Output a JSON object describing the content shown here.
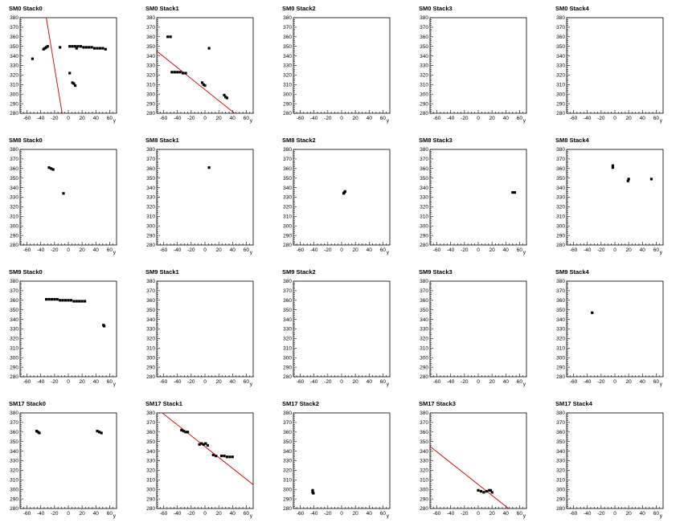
{
  "chart_data": [
    {
      "type": "scatter",
      "title": "SM0 Stack0",
      "xlabel": "y",
      "xlim": [
        -70,
        70
      ],
      "ylim": [
        280,
        380
      ],
      "x_ticks": [
        -60,
        -40,
        -20,
        0,
        20,
        40,
        60
      ],
      "y_ticks": [
        280,
        290,
        300,
        310,
        320,
        330,
        340,
        350,
        360,
        370,
        380
      ],
      "points": [
        [
          -52,
          337
        ],
        [
          -36,
          347
        ],
        [
          -34,
          348
        ],
        [
          -32,
          349
        ],
        [
          -30,
          350
        ],
        [
          -12,
          349
        ],
        [
          2,
          350
        ],
        [
          6,
          350
        ],
        [
          10,
          350
        ],
        [
          14,
          350
        ],
        [
          18,
          350
        ],
        [
          22,
          349
        ],
        [
          26,
          349
        ],
        [
          30,
          349
        ],
        [
          34,
          349
        ],
        [
          38,
          348
        ],
        [
          42,
          348
        ],
        [
          46,
          348
        ],
        [
          50,
          348
        ],
        [
          54,
          347
        ],
        [
          2,
          322
        ],
        [
          6,
          312
        ],
        [
          8,
          311
        ],
        [
          10,
          309
        ],
        [
          12,
          348
        ]
      ],
      "fit_line": [
        [
          -32,
          380
        ],
        [
          -9,
          280
        ]
      ]
    },
    {
      "type": "scatter",
      "title": "SM0 Stack1",
      "xlabel": "y",
      "xlim": [
        -70,
        70
      ],
      "ylim": [
        280,
        380
      ],
      "x_ticks": [
        -60,
        -40,
        -20,
        0,
        20,
        40,
        60
      ],
      "y_ticks": [
        280,
        290,
        300,
        310,
        320,
        330,
        340,
        350,
        360,
        370,
        380
      ],
      "points": [
        [
          -54,
          360
        ],
        [
          -50,
          360
        ],
        [
          -48,
          323
        ],
        [
          -44,
          323
        ],
        [
          -40,
          323
        ],
        [
          -36,
          323
        ],
        [
          -32,
          322
        ],
        [
          -28,
          322
        ],
        [
          -4,
          312
        ],
        [
          -2,
          310
        ],
        [
          0,
          309
        ],
        [
          6,
          348
        ],
        [
          28,
          299
        ],
        [
          30,
          297
        ],
        [
          32,
          296
        ]
      ],
      "fit_line": [
        [
          -70,
          345
        ],
        [
          43,
          280
        ]
      ]
    },
    {
      "type": "scatter",
      "title": "SM0 Stack2",
      "xlabel": "y",
      "xlim": [
        -70,
        70
      ],
      "ylim": [
        280,
        380
      ],
      "x_ticks": [
        -60,
        -40,
        -20,
        0,
        20,
        40,
        60
      ],
      "y_ticks": [
        280,
        290,
        300,
        310,
        320,
        330,
        340,
        350,
        360,
        370,
        380
      ],
      "points": []
    },
    {
      "type": "scatter",
      "title": "SM0 Stack3",
      "xlabel": "y",
      "xlim": [
        -70,
        70
      ],
      "ylim": [
        280,
        380
      ],
      "x_ticks": [
        -60,
        -40,
        -20,
        0,
        20,
        40,
        60
      ],
      "y_ticks": [
        280,
        290,
        300,
        310,
        320,
        330,
        340,
        350,
        360,
        370,
        380
      ],
      "points": []
    },
    {
      "type": "scatter",
      "title": "SM0 Stack4",
      "xlabel": "y",
      "xlim": [
        -70,
        70
      ],
      "ylim": [
        280,
        380
      ],
      "x_ticks": [
        -60,
        -40,
        -20,
        0,
        20,
        40,
        60
      ],
      "y_ticks": [
        280,
        290,
        300,
        310,
        320,
        330,
        340,
        350,
        360,
        370,
        380
      ],
      "points": []
    },
    {
      "type": "scatter",
      "title": "SM8 Stack0",
      "xlabel": "y",
      "xlim": [
        -70,
        70
      ],
      "ylim": [
        280,
        380
      ],
      "x_ticks": [
        -60,
        -40,
        -20,
        0,
        20,
        40,
        60
      ],
      "y_ticks": [
        280,
        290,
        300,
        310,
        320,
        330,
        340,
        350,
        360,
        370,
        380
      ],
      "points": [
        [
          -28,
          361
        ],
        [
          -25,
          360
        ],
        [
          -22,
          359
        ],
        [
          -7,
          334
        ]
      ]
    },
    {
      "type": "scatter",
      "title": "SM8 Stack1",
      "xlabel": "y",
      "xlim": [
        -70,
        70
      ],
      "ylim": [
        280,
        380
      ],
      "x_ticks": [
        -60,
        -40,
        -20,
        0,
        20,
        40,
        60
      ],
      "y_ticks": [
        280,
        290,
        300,
        310,
        320,
        330,
        340,
        350,
        360,
        370,
        380
      ],
      "points": [
        [
          6,
          361
        ]
      ]
    },
    {
      "type": "scatter",
      "title": "SM8 Stack2",
      "xlabel": "y",
      "xlim": [
        -70,
        70
      ],
      "ylim": [
        280,
        380
      ],
      "x_ticks": [
        -60,
        -40,
        -20,
        0,
        20,
        40,
        60
      ],
      "y_ticks": [
        280,
        290,
        300,
        310,
        320,
        330,
        340,
        350,
        360,
        370,
        380
      ],
      "points": [
        [
          3,
          334
        ],
        [
          4,
          335
        ],
        [
          5,
          336
        ]
      ]
    },
    {
      "type": "scatter",
      "title": "SM8 Stack3",
      "xlabel": "y",
      "xlim": [
        -70,
        70
      ],
      "ylim": [
        280,
        380
      ],
      "x_ticks": [
        -60,
        -40,
        -20,
        0,
        20,
        40,
        60
      ],
      "y_ticks": [
        280,
        290,
        300,
        310,
        320,
        330,
        340,
        350,
        360,
        370,
        380
      ],
      "points": [
        [
          50,
          335
        ],
        [
          53,
          335
        ]
      ]
    },
    {
      "type": "scatter",
      "title": "SM8 Stack4",
      "xlabel": "y",
      "xlim": [
        -70,
        70
      ],
      "ylim": [
        280,
        380
      ],
      "x_ticks": [
        -60,
        -40,
        -20,
        0,
        20,
        40,
        60
      ],
      "y_ticks": [
        280,
        290,
        300,
        310,
        320,
        330,
        340,
        350,
        360,
        370,
        380
      ],
      "points": [
        [
          -3,
          361
        ],
        [
          -3,
          363
        ],
        [
          19,
          347
        ],
        [
          20,
          349
        ],
        [
          53,
          349
        ]
      ]
    },
    {
      "type": "scatter",
      "title": "SM9 Stack0",
      "xlabel": "y",
      "xlim": [
        -70,
        70
      ],
      "ylim": [
        280,
        380
      ],
      "x_ticks": [
        -60,
        -40,
        -20,
        0,
        20,
        40,
        60
      ],
      "y_ticks": [
        280,
        290,
        300,
        310,
        320,
        330,
        340,
        350,
        360,
        370,
        380
      ],
      "points": [
        [
          -32,
          361
        ],
        [
          -28,
          361
        ],
        [
          -24,
          361
        ],
        [
          -20,
          361
        ],
        [
          -16,
          361
        ],
        [
          -12,
          360
        ],
        [
          -8,
          360
        ],
        [
          -4,
          360
        ],
        [
          0,
          360
        ],
        [
          4,
          360
        ],
        [
          8,
          359
        ],
        [
          12,
          359
        ],
        [
          16,
          359
        ],
        [
          20,
          359
        ],
        [
          24,
          359
        ],
        [
          51,
          334
        ],
        [
          52,
          333
        ]
      ]
    },
    {
      "type": "scatter",
      "title": "SM9 Stack1",
      "xlabel": "y",
      "xlim": [
        -70,
        70
      ],
      "ylim": [
        280,
        380
      ],
      "x_ticks": [
        -60,
        -40,
        -20,
        0,
        20,
        40,
        60
      ],
      "y_ticks": [
        280,
        290,
        300,
        310,
        320,
        330,
        340,
        350,
        360,
        370,
        380
      ],
      "points": []
    },
    {
      "type": "scatter",
      "title": "SM9 Stack2",
      "xlabel": "y",
      "xlim": [
        -70,
        70
      ],
      "ylim": [
        280,
        380
      ],
      "x_ticks": [
        -60,
        -40,
        -20,
        0,
        20,
        40,
        60
      ],
      "y_ticks": [
        280,
        290,
        300,
        310,
        320,
        330,
        340,
        350,
        360,
        370,
        380
      ],
      "points": []
    },
    {
      "type": "scatter",
      "title": "SM9 Stack3",
      "xlabel": "y",
      "xlim": [
        -70,
        70
      ],
      "ylim": [
        280,
        380
      ],
      "x_ticks": [
        -60,
        -40,
        -20,
        0,
        20,
        40,
        60
      ],
      "y_ticks": [
        280,
        290,
        300,
        310,
        320,
        330,
        340,
        350,
        360,
        370,
        380
      ],
      "points": []
    },
    {
      "type": "scatter",
      "title": "SM9 Stack4",
      "xlabel": "y",
      "xlim": [
        -70,
        70
      ],
      "ylim": [
        280,
        380
      ],
      "x_ticks": [
        -60,
        -40,
        -20,
        0,
        20,
        40,
        60
      ],
      "y_ticks": [
        280,
        290,
        300,
        310,
        320,
        330,
        340,
        350,
        360,
        370,
        380
      ],
      "points": [
        [
          -33,
          347
        ]
      ]
    },
    {
      "type": "scatter",
      "title": "SM17 Stack0",
      "xlabel": "y",
      "xlim": [
        -70,
        70
      ],
      "ylim": [
        280,
        380
      ],
      "x_ticks": [
        -60,
        -40,
        -20,
        0,
        20,
        40,
        60
      ],
      "y_ticks": [
        280,
        290,
        300,
        310,
        320,
        330,
        340,
        350,
        360,
        370,
        380
      ],
      "points": [
        [
          -46,
          361
        ],
        [
          -44,
          360
        ],
        [
          -42,
          359
        ],
        [
          42,
          361
        ],
        [
          45,
          360
        ],
        [
          48,
          359
        ]
      ]
    },
    {
      "type": "scatter",
      "title": "SM17 Stack1",
      "xlabel": "y",
      "xlim": [
        -70,
        70
      ],
      "ylim": [
        280,
        380
      ],
      "x_ticks": [
        -60,
        -40,
        -20,
        0,
        20,
        40,
        60
      ],
      "y_ticks": [
        280,
        290,
        300,
        310,
        320,
        330,
        340,
        350,
        360,
        370,
        380
      ],
      "points": [
        [
          -34,
          362
        ],
        [
          -31,
          361
        ],
        [
          -28,
          360
        ],
        [
          -25,
          360
        ],
        [
          -8,
          347
        ],
        [
          -5,
          348
        ],
        [
          -2,
          347
        ],
        [
          1,
          348
        ],
        [
          4,
          346
        ],
        [
          12,
          336
        ],
        [
          16,
          335
        ],
        [
          24,
          335
        ],
        [
          28,
          335
        ],
        [
          32,
          334
        ],
        [
          36,
          334
        ],
        [
          40,
          334
        ]
      ],
      "fit_line": [
        [
          -62,
          380
        ],
        [
          70,
          305
        ]
      ]
    },
    {
      "type": "scatter",
      "title": "SM17 Stack2",
      "xlabel": "y",
      "xlim": [
        -70,
        70
      ],
      "ylim": [
        280,
        380
      ],
      "x_ticks": [
        -60,
        -40,
        -20,
        0,
        20,
        40,
        60
      ],
      "y_ticks": [
        280,
        290,
        300,
        310,
        320,
        330,
        340,
        350,
        360,
        370,
        380
      ],
      "points": [
        [
          -42,
          299
        ],
        [
          -42,
          297
        ],
        [
          -41,
          296
        ]
      ]
    },
    {
      "type": "scatter",
      "title": "SM17 Stack3",
      "xlabel": "y",
      "xlim": [
        -70,
        70
      ],
      "ylim": [
        280,
        380
      ],
      "x_ticks": [
        -60,
        -40,
        -20,
        0,
        20,
        40,
        60
      ],
      "y_ticks": [
        280,
        290,
        300,
        310,
        320,
        330,
        340,
        350,
        360,
        370,
        380
      ],
      "points": [
        [
          0,
          299
        ],
        [
          4,
          298
        ],
        [
          8,
          297
        ],
        [
          12,
          298
        ],
        [
          16,
          299
        ],
        [
          18,
          299
        ],
        [
          20,
          297
        ]
      ],
      "fit_line": [
        [
          -70,
          345
        ],
        [
          44,
          280
        ]
      ]
    },
    {
      "type": "scatter",
      "title": "SM17 Stack4",
      "xlabel": "y",
      "xlim": [
        -70,
        70
      ],
      "ylim": [
        280,
        380
      ],
      "x_ticks": [
        -60,
        -40,
        -20,
        0,
        20,
        40,
        60
      ],
      "y_ticks": [
        280,
        290,
        300,
        310,
        320,
        330,
        340,
        350,
        360,
        370,
        380
      ],
      "points": []
    }
  ],
  "colors": {
    "points": "#000000",
    "fit_line": "#cc0000",
    "frame": "#000000"
  }
}
